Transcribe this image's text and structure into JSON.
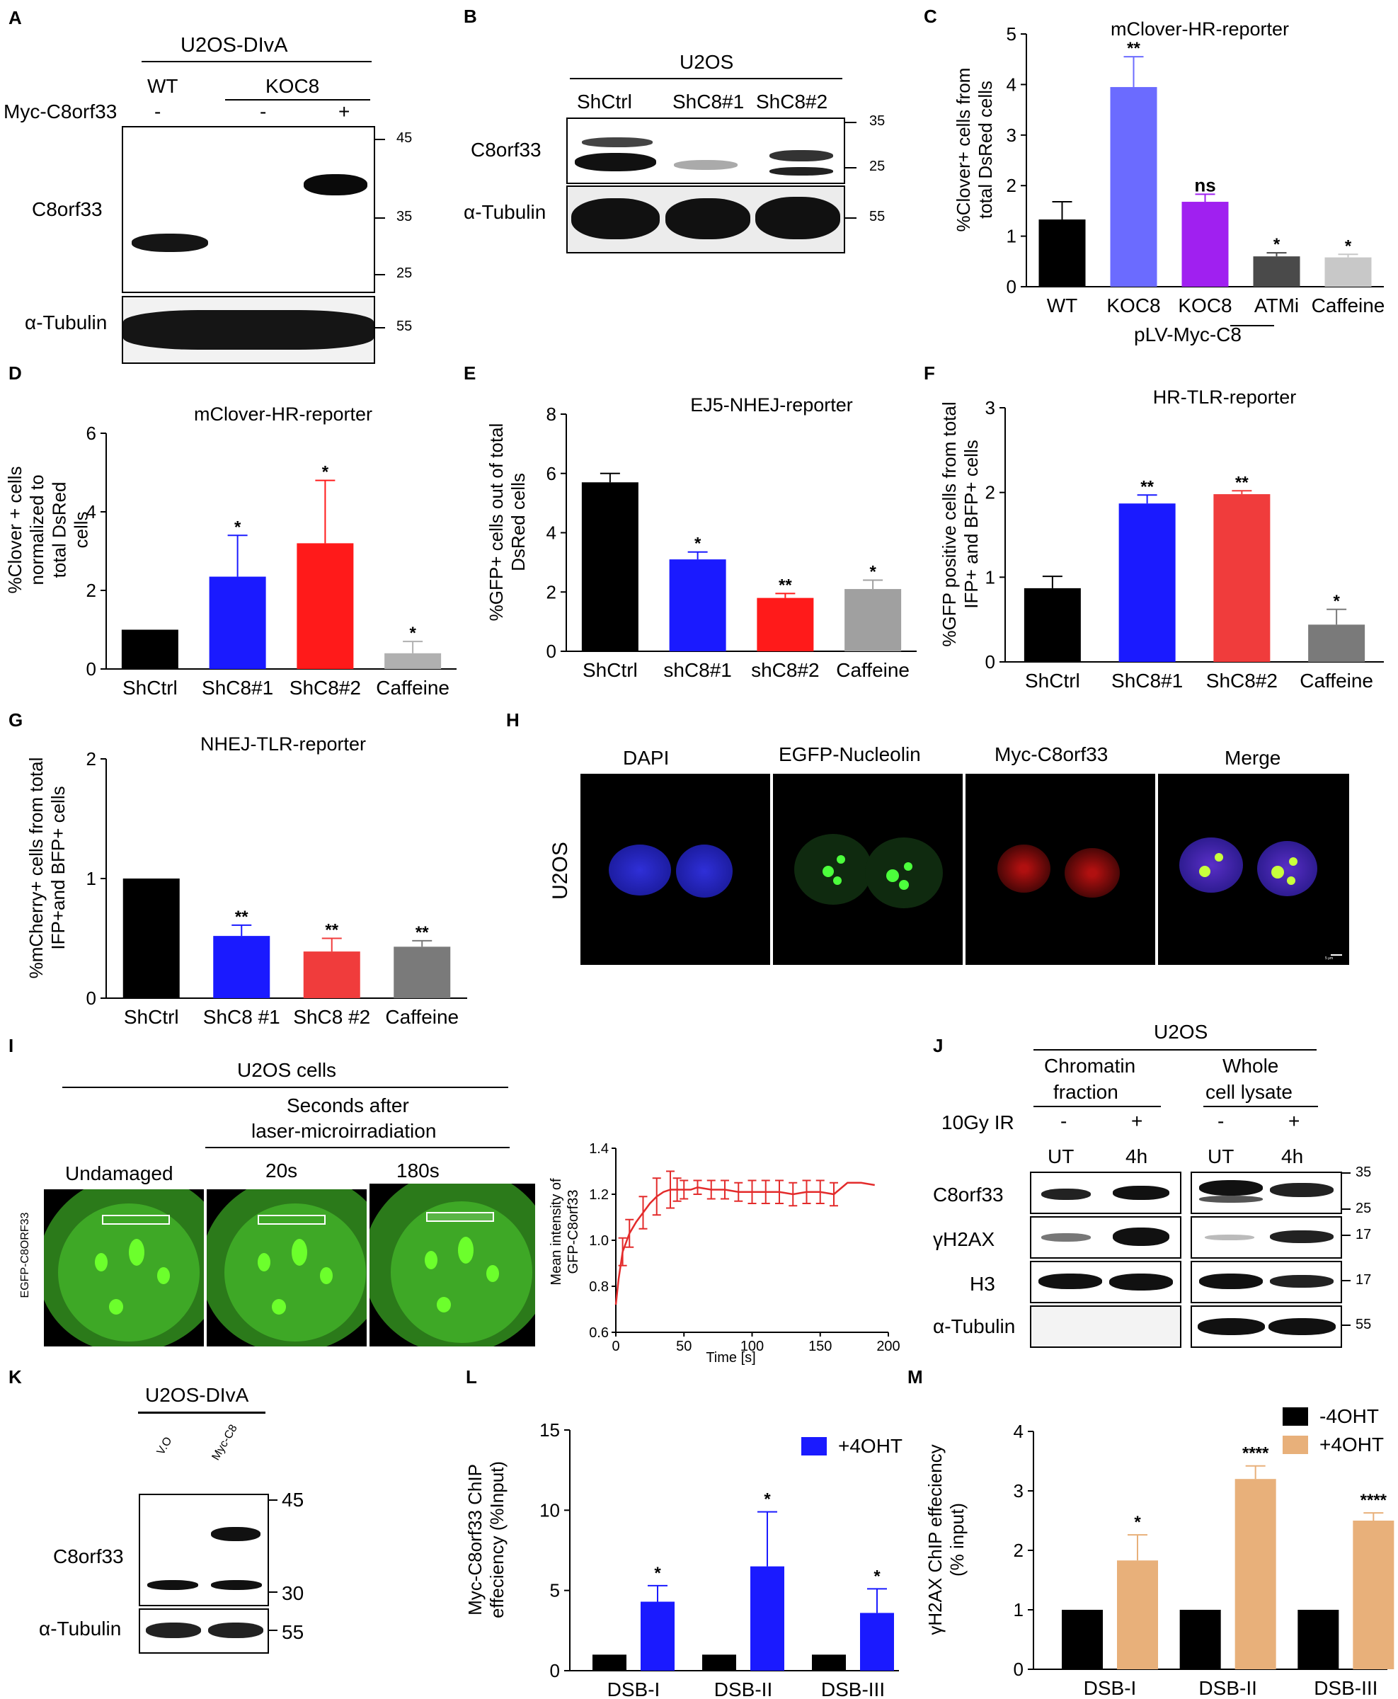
{
  "panels": {
    "A": {
      "letter": "A",
      "cell_line": "U2OS-DIvA",
      "groups": [
        "WT",
        "KOC8"
      ],
      "row_label": "Myc-C8orf33",
      "signs": [
        "-",
        "-",
        "+"
      ],
      "blot_labels": [
        "C8orf33",
        "α-Tubulin"
      ],
      "markers": [
        "45",
        "35",
        "25",
        "55"
      ]
    },
    "B": {
      "letter": "B",
      "cell_line": "U2OS",
      "lanes": [
        "ShCtrl",
        "ShC8#1",
        "ShC8#2"
      ],
      "blot_labels": [
        "C8orf33",
        "α-Tubulin"
      ],
      "markers": [
        "35",
        "25",
        "55"
      ]
    },
    "H": {
      "letter": "H",
      "columns": [
        "DAPI",
        "EGFP-Nucleolin",
        "Myc-C8orf33",
        "Merge"
      ],
      "row_label": "U2OS",
      "scale": "5 μm"
    },
    "I": {
      "letter": "I",
      "title": "U2OS cells",
      "subtitle_1": "Seconds after",
      "subtitle_2": "laser-microirradiation",
      "columns": [
        "Undamaged",
        "20s",
        "180s"
      ],
      "row_label": "EGFP-C8ORF33"
    },
    "J": {
      "letter": "J",
      "cell_line": "U2OS",
      "group1_1": "Chromatin",
      "group1_2": "fraction",
      "group2_1": "Whole",
      "group2_2": "cell lysate",
      "treatment": "10Gy IR",
      "signs": [
        "-",
        "+",
        "-",
        "+"
      ],
      "lanes": [
        "UT",
        "4h",
        "UT",
        "4h"
      ],
      "blot_labels": [
        "C8orf33",
        "γH2AX",
        "H3",
        "α-Tubulin"
      ],
      "markers": [
        "35",
        "25",
        "17",
        "17",
        "55"
      ]
    },
    "K": {
      "letter": "K",
      "cell_line": "U2OS-DIvA",
      "lanes": [
        "V.O",
        "Myc-C8"
      ],
      "blot_labels": [
        "C8orf33",
        "α-Tubulin"
      ],
      "markers": [
        "45",
        "30",
        "55"
      ]
    }
  },
  "chart_data": [
    {
      "panel": "C",
      "type": "bar",
      "title": "mClover-HR-reporter",
      "ylabel": "%Clover+ cells from total DsRed cells",
      "ylim": [
        0,
        5
      ],
      "yticks": [
        0,
        1,
        2,
        3,
        4,
        5
      ],
      "categories": [
        "WT",
        "KOC8",
        "KOC8",
        "ATMi",
        "Caffeine"
      ],
      "values": [
        1.33,
        3.95,
        1.68,
        0.6,
        0.58
      ],
      "errors": [
        0.35,
        0.6,
        0.15,
        0.07,
        0.06
      ],
      "sig": [
        "",
        "**",
        "ns",
        "*",
        "*"
      ],
      "colors": [
        "#000000",
        "#6b6bff",
        "#a020f0",
        "#4a4a4a",
        "#c8c8c8"
      ],
      "sublabel": "pLV-Myc-C8"
    },
    {
      "panel": "D",
      "type": "bar",
      "title": "mClover-HR-reporter",
      "ylabel": "%Clover + cells normalized to total DsRed cells",
      "ylim": [
        0,
        6
      ],
      "yticks": [
        0,
        2,
        4,
        6
      ],
      "categories": [
        "ShCtrl",
        "ShC8#1",
        "ShC8#2",
        "Caffeine"
      ],
      "values": [
        1.0,
        2.35,
        3.2,
        0.4
      ],
      "errors": [
        0,
        1.05,
        1.6,
        0.3
      ],
      "sig": [
        "",
        "*",
        "*",
        "*"
      ],
      "colors": [
        "#000000",
        "#1a1aff",
        "#ff1a1a",
        "#b0b0b0"
      ]
    },
    {
      "panel": "E",
      "type": "bar",
      "title": "EJ5-NHEJ-reporter",
      "ylabel": "%GFP+ cells out of total DsRed cells",
      "ylim": [
        0,
        8
      ],
      "yticks": [
        0,
        2,
        4,
        6,
        8
      ],
      "categories": [
        "ShCtrl",
        "shC8#1",
        "shC8#2",
        "Caffeine"
      ],
      "values": [
        5.7,
        3.1,
        1.8,
        2.1
      ],
      "errors": [
        0.3,
        0.25,
        0.15,
        0.3
      ],
      "sig": [
        "",
        "*",
        "**",
        "*"
      ],
      "colors": [
        "#000000",
        "#1a1aff",
        "#ff1a1a",
        "#a0a0a0"
      ]
    },
    {
      "panel": "F",
      "type": "bar",
      "title": "HR-TLR-reporter",
      "ylabel": "%GFP positive cells from total IFP+ and BFP+ cells",
      "ylim": [
        0,
        3
      ],
      "yticks": [
        0,
        1,
        2,
        3
      ],
      "categories": [
        "ShCtrl",
        "ShC8#1",
        "ShC8#2",
        "Caffeine"
      ],
      "values": [
        0.87,
        1.87,
        1.98,
        0.44
      ],
      "errors": [
        0.14,
        0.1,
        0.04,
        0.18
      ],
      "sig": [
        "",
        "**",
        "**",
        "*"
      ],
      "colors": [
        "#000000",
        "#1a1aff",
        "#f03c3c",
        "#7a7a7a"
      ]
    },
    {
      "panel": "G",
      "type": "bar",
      "title": "NHEJ-TLR-reporter",
      "ylabel": "%mCherry+ cells from total IFP+and BFP+ cells",
      "ylim": [
        0,
        2
      ],
      "yticks": [
        0,
        1,
        2
      ],
      "categories": [
        "ShCtrl",
        "ShC8 #1",
        "ShC8 #2",
        "Caffeine"
      ],
      "values": [
        1.0,
        0.52,
        0.39,
        0.43
      ],
      "errors": [
        0,
        0.09,
        0.11,
        0.05
      ],
      "sig": [
        "",
        "**",
        "**",
        "**"
      ],
      "colors": [
        "#000000",
        "#1a1aff",
        "#f03c3c",
        "#7a7a7a"
      ]
    },
    {
      "panel": "I-chart",
      "type": "line",
      "xlabel": "Time [s]",
      "ylabel": "Mean intensity of GFP-C8orf33",
      "xlim": [
        0,
        200
      ],
      "ylim": [
        0.6,
        1.4
      ],
      "xticks": [
        0,
        50,
        100,
        150,
        200
      ],
      "yticks": [
        0.6,
        0.8,
        1.0,
        1.2,
        1.4
      ],
      "x": [
        0,
        2,
        5,
        10,
        15,
        20,
        25,
        30,
        35,
        40,
        45,
        50,
        55,
        60,
        70,
        80,
        90,
        100,
        110,
        120,
        130,
        140,
        150,
        160,
        170,
        180,
        190
      ],
      "y": [
        0.72,
        0.83,
        0.95,
        1.03,
        1.08,
        1.12,
        1.16,
        1.19,
        1.21,
        1.22,
        1.22,
        1.22,
        1.22,
        1.23,
        1.22,
        1.22,
        1.21,
        1.21,
        1.21,
        1.21,
        1.2,
        1.21,
        1.21,
        1.2,
        1.25,
        1.25,
        1.24
      ],
      "yerr": [
        0.05,
        0.06,
        0.06,
        0.06,
        0.07,
        0.07,
        0.08,
        0.08,
        0.08,
        0.08,
        0.05,
        0.04,
        0.03,
        0.03,
        0.04,
        0.04,
        0.04,
        0.05,
        0.05,
        0.05,
        0.05,
        0.05,
        0.05,
        0.05,
        0,
        0,
        0
      ],
      "errbar_x": [
        5,
        10,
        20,
        30,
        40,
        45,
        50,
        60,
        70,
        80,
        90,
        100,
        110,
        120,
        130,
        140,
        150,
        160
      ],
      "color": "#e32b2b"
    },
    {
      "panel": "L",
      "type": "bar",
      "ylabel": "Myc-C8orf33 ChIP effeciency (%Input)",
      "ylim": [
        0,
        15
      ],
      "yticks": [
        0,
        5,
        10,
        15
      ],
      "categories": [
        "DSB-I",
        "DSB-II",
        "DSB-III"
      ],
      "series": [
        {
          "values": [
            1.0,
            1.0,
            1.0
          ],
          "errors": [
            0,
            0,
            0
          ],
          "color": "#000000",
          "sig": [
            "",
            "",
            ""
          ]
        },
        {
          "name": "+4OHT",
          "values": [
            4.3,
            6.5,
            3.6
          ],
          "errors": [
            1.0,
            3.4,
            1.5
          ],
          "color": "#1a1aff",
          "sig": [
            "*",
            "*",
            "*"
          ]
        }
      ]
    },
    {
      "panel": "M",
      "type": "bar",
      "ylabel": "γH2AX ChIP effeciency (% input)",
      "ylim": [
        0,
        4
      ],
      "yticks": [
        0,
        1,
        2,
        3,
        4
      ],
      "categories": [
        "DSB-I",
        "DSB-II",
        "DSB-III"
      ],
      "series": [
        {
          "name": "-4OHT",
          "values": [
            1.0,
            1.0,
            1.0
          ],
          "errors": [
            0,
            0,
            0
          ],
          "color": "#000000",
          "sig": [
            "",
            "",
            ""
          ]
        },
        {
          "name": "+4OHT",
          "values": [
            1.83,
            3.2,
            2.5
          ],
          "errors": [
            0.43,
            0.22,
            0.13
          ],
          "color": "#e8b07a",
          "sig": [
            "*",
            "****",
            "****"
          ]
        }
      ]
    }
  ]
}
